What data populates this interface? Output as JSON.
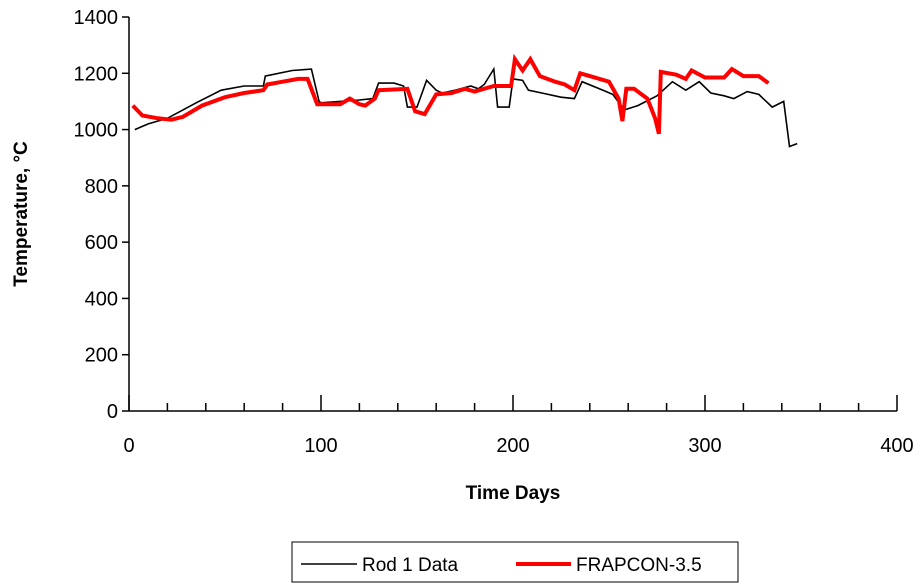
{
  "chart_data": {
    "type": "line",
    "title": "",
    "xlabel": "Time Days",
    "ylabel": "Temperature, °C",
    "xlim": [
      0,
      400
    ],
    "ylim": [
      0,
      1400
    ],
    "x_ticks": [
      0,
      100,
      200,
      300,
      400
    ],
    "x_tick_labels": [
      "0",
      "100",
      "200",
      "300",
      "400"
    ],
    "y_ticks": [
      0,
      200,
      400,
      600,
      800,
      1000,
      1200,
      1400
    ],
    "y_tick_labels": [
      "0",
      "200",
      "400",
      "600",
      "800",
      "1000",
      "1200",
      "1400"
    ],
    "x_minor_step": 20,
    "grid": false,
    "legend_position": "bottom",
    "series": [
      {
        "name": "Rod 1 Data",
        "color": "#000000",
        "points": [
          [
            3,
            1000
          ],
          [
            10,
            1020
          ],
          [
            20,
            1040
          ],
          [
            35,
            1095
          ],
          [
            48,
            1140
          ],
          [
            60,
            1155
          ],
          [
            70,
            1155
          ],
          [
            71,
            1190
          ],
          [
            85,
            1210
          ],
          [
            95,
            1215
          ],
          [
            99,
            1100
          ],
          [
            100,
            1095
          ],
          [
            110,
            1100
          ],
          [
            120,
            1105
          ],
          [
            127,
            1110
          ],
          [
            130,
            1165
          ],
          [
            138,
            1165
          ],
          [
            143,
            1155
          ],
          [
            145,
            1080
          ],
          [
            150,
            1080
          ],
          [
            155,
            1175
          ],
          [
            160,
            1140
          ],
          [
            163,
            1130
          ],
          [
            170,
            1140
          ],
          [
            178,
            1155
          ],
          [
            182,
            1145
          ],
          [
            185,
            1160
          ],
          [
            190,
            1215
          ],
          [
            192,
            1080
          ],
          [
            198,
            1080
          ],
          [
            200,
            1180
          ],
          [
            205,
            1175
          ],
          [
            208,
            1140
          ],
          [
            215,
            1130
          ],
          [
            225,
            1115
          ],
          [
            232,
            1110
          ],
          [
            236,
            1170
          ],
          [
            245,
            1145
          ],
          [
            252,
            1125
          ],
          [
            258,
            1070
          ],
          [
            265,
            1085
          ],
          [
            275,
            1120
          ],
          [
            283,
            1170
          ],
          [
            290,
            1140
          ],
          [
            297,
            1170
          ],
          [
            303,
            1130
          ],
          [
            310,
            1120
          ],
          [
            315,
            1110
          ],
          [
            322,
            1135
          ],
          [
            328,
            1125
          ],
          [
            335,
            1080
          ],
          [
            341,
            1100
          ],
          [
            344,
            940
          ],
          [
            348,
            950
          ]
        ]
      },
      {
        "name": "FRAPCON-3.5",
        "color": "#ff0000",
        "points": [
          [
            2,
            1085
          ],
          [
            7,
            1050
          ],
          [
            15,
            1040
          ],
          [
            22,
            1035
          ],
          [
            28,
            1045
          ],
          [
            38,
            1085
          ],
          [
            50,
            1115
          ],
          [
            60,
            1130
          ],
          [
            70,
            1140
          ],
          [
            72,
            1160
          ],
          [
            80,
            1170
          ],
          [
            88,
            1180
          ],
          [
            93,
            1180
          ],
          [
            98,
            1090
          ],
          [
            110,
            1090
          ],
          [
            115,
            1110
          ],
          [
            120,
            1090
          ],
          [
            123,
            1085
          ],
          [
            128,
            1110
          ],
          [
            130,
            1140
          ],
          [
            145,
            1145
          ],
          [
            149,
            1065
          ],
          [
            154,
            1055
          ],
          [
            160,
            1125
          ],
          [
            168,
            1130
          ],
          [
            175,
            1145
          ],
          [
            180,
            1135
          ],
          [
            190,
            1155
          ],
          [
            199,
            1155
          ],
          [
            201,
            1250
          ],
          [
            205,
            1210
          ],
          [
            209,
            1250
          ],
          [
            214,
            1190
          ],
          [
            222,
            1170
          ],
          [
            227,
            1160
          ],
          [
            232,
            1140
          ],
          [
            235,
            1200
          ],
          [
            240,
            1190
          ],
          [
            250,
            1170
          ],
          [
            255,
            1110
          ],
          [
            257,
            1030
          ],
          [
            259,
            1145
          ],
          [
            263,
            1145
          ],
          [
            270,
            1110
          ],
          [
            274,
            1040
          ],
          [
            276,
            985
          ],
          [
            277,
            1205
          ],
          [
            285,
            1195
          ],
          [
            290,
            1180
          ],
          [
            293,
            1210
          ],
          [
            300,
            1185
          ],
          [
            310,
            1185
          ],
          [
            314,
            1215
          ],
          [
            320,
            1190
          ],
          [
            328,
            1190
          ],
          [
            333,
            1165
          ]
        ]
      }
    ]
  }
}
